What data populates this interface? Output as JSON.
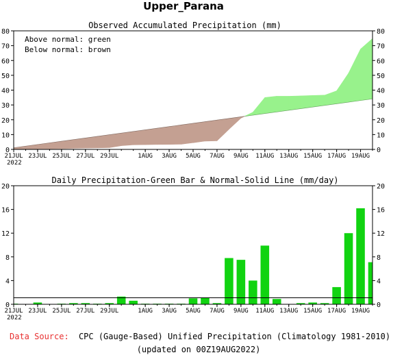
{
  "page": {
    "title": "Upper_Parana",
    "footer": {
      "source_label": "Data Source:",
      "source_text": "CPC (Gauge-Based) Unified Precipitation (Climatology 1981-2010)",
      "updated": "(updated on 00Z19AUG2022)"
    },
    "colors": {
      "above_normal": "#98f28c",
      "below_normal": "#c4a092",
      "daily_bar": "#11d311",
      "source_label": "#e83030",
      "line": "#000000"
    }
  },
  "chart_data": [
    {
      "type": "area",
      "title": "Observed Accumulated Precipitation (mm)",
      "legend": [
        "Above normal: green",
        "Below normal: brown"
      ],
      "legend_position": "top-left",
      "ylim": [
        0,
        80
      ],
      "yticks": [
        0,
        10,
        20,
        30,
        40,
        50,
        60,
        70,
        80
      ],
      "x_labels": [
        {
          "day": 0,
          "text": "21JUL"
        },
        {
          "day": 2,
          "text": "23JUL"
        },
        {
          "day": 4,
          "text": "25JUL"
        },
        {
          "day": 6,
          "text": "27JUL"
        },
        {
          "day": 8,
          "text": "29JUL"
        },
        {
          "day": 11,
          "text": "1AUG"
        },
        {
          "day": 13,
          "text": "3AUG"
        },
        {
          "day": 15,
          "text": "5AUG"
        },
        {
          "day": 17,
          "text": "7AUG"
        },
        {
          "day": 19,
          "text": "9AUG"
        },
        {
          "day": 21,
          "text": "11AUG"
        },
        {
          "day": 23,
          "text": "13AUG"
        },
        {
          "day": 25,
          "text": "15AUG"
        },
        {
          "day": 27,
          "text": "17AUG"
        },
        {
          "day": 29,
          "text": "19AUG"
        }
      ],
      "year_label": "2022",
      "series": [
        {
          "name": "Observed",
          "values": [
            0.1,
            0.1,
            0.4,
            0.4,
            0.5,
            0.7,
            0.9,
            1.0,
            1.2,
            2.5,
            3.1,
            3.2,
            3.3,
            3.4,
            3.5,
            4.5,
            5.6,
            5.8,
            13.6,
            21.1,
            25.1,
            35.0,
            35.9,
            35.9,
            36.1,
            36.4,
            36.6,
            39.5,
            51.5,
            67.7,
            74.8
          ]
        },
        {
          "name": "Normal",
          "values": [
            1.1,
            2.2,
            3.3,
            4.4,
            5.5,
            6.6,
            7.7,
            8.8,
            9.9,
            11.0,
            12.1,
            13.2,
            14.3,
            15.4,
            16.5,
            17.6,
            18.7,
            19.8,
            20.9,
            22.0,
            23.1,
            24.2,
            25.3,
            26.4,
            27.5,
            28.6,
            29.7,
            30.8,
            31.9,
            33.0,
            34.1
          ]
        }
      ]
    },
    {
      "type": "bar",
      "title": "Daily Precipitation-Green Bar & Normal-Solid Line (mm/day)",
      "ylim": [
        0,
        20
      ],
      "yticks": [
        0,
        4,
        8,
        12,
        16,
        20
      ],
      "series": [
        {
          "name": "Daily",
          "values": [
            0.1,
            0.0,
            0.3,
            0.0,
            0.1,
            0.2,
            0.2,
            0.1,
            0.2,
            1.3,
            0.6,
            0.1,
            0.1,
            0.1,
            0.1,
            1.0,
            1.1,
            0.2,
            7.8,
            7.5,
            4.0,
            9.9,
            0.9,
            0.0,
            0.2,
            0.3,
            0.2,
            2.9,
            12.0,
            16.2,
            7.1
          ]
        },
        {
          "name": "Normal",
          "values": [
            1.1,
            1.1,
            1.1,
            1.1,
            1.1,
            1.1,
            1.1,
            1.1,
            1.1,
            1.1,
            1.1,
            1.1,
            1.1,
            1.1,
            1.1,
            1.1,
            1.1,
            1.1,
            1.1,
            1.1,
            1.1,
            1.1,
            1.1,
            1.1,
            1.1,
            1.1,
            1.1,
            1.1,
            1.1,
            1.1,
            1.1
          ]
        }
      ]
    }
  ]
}
